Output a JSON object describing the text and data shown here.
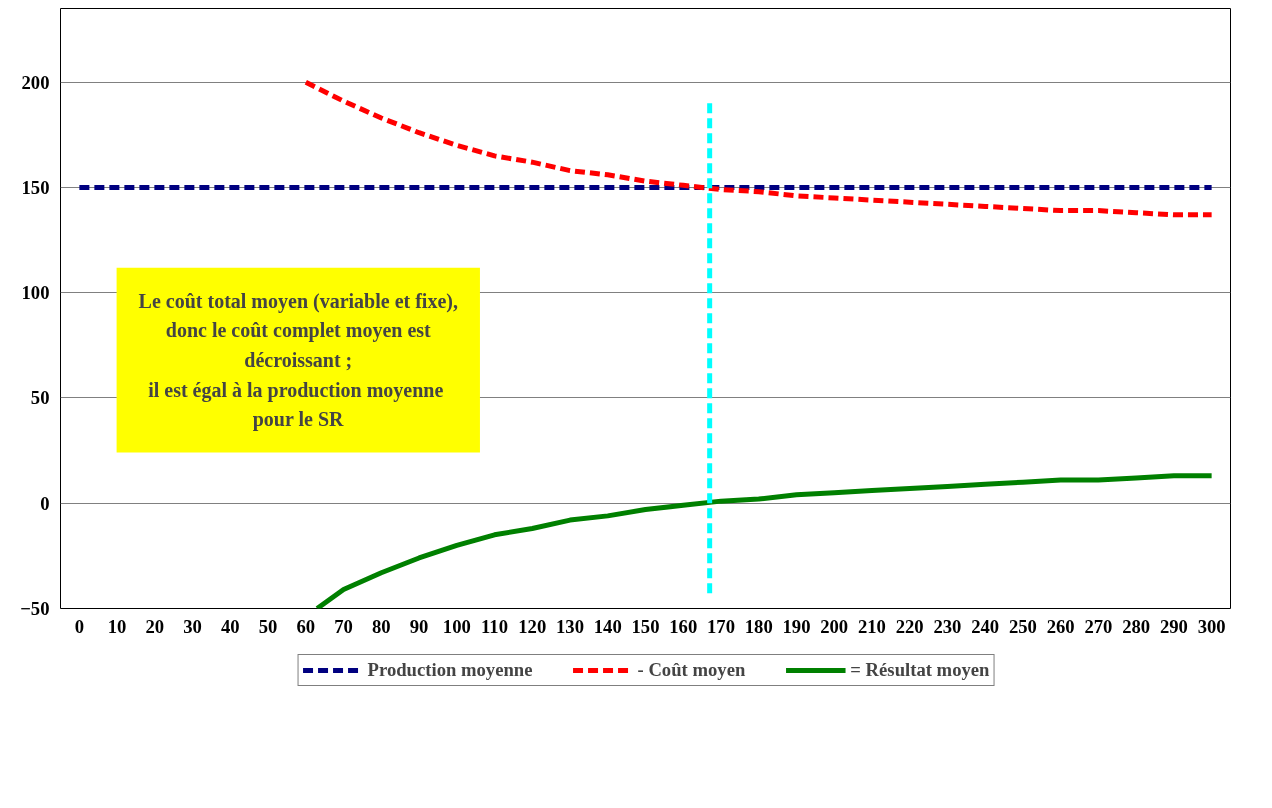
{
  "chart_data": {
    "type": "line",
    "x": [
      0,
      10,
      20,
      30,
      40,
      50,
      60,
      70,
      80,
      90,
      100,
      110,
      120,
      130,
      140,
      150,
      160,
      170,
      180,
      190,
      200,
      210,
      220,
      230,
      240,
      250,
      260,
      270,
      280,
      290,
      300
    ],
    "xlim": [
      -5,
      305
    ],
    "xticks": [
      0,
      10,
      20,
      30,
      40,
      50,
      60,
      70,
      80,
      90,
      100,
      110,
      120,
      130,
      140,
      150,
      160,
      170,
      180,
      190,
      200,
      210,
      220,
      230,
      240,
      250,
      260,
      270,
      280,
      290,
      300
    ],
    "ylim": [
      -50,
      235
    ],
    "yticks": [
      -50,
      0,
      50,
      100,
      150,
      200
    ],
    "grid": "y",
    "legend": "bottom",
    "series": [
      {
        "name": "Production moyenne",
        "color": "#000080",
        "line_style": "dashed",
        "values": [
          150,
          150,
          150,
          150,
          150,
          150,
          150,
          150,
          150,
          150,
          150,
          150,
          150,
          150,
          150,
          150,
          150,
          150,
          150,
          150,
          150,
          150,
          150,
          150,
          150,
          150,
          150,
          150,
          150,
          150,
          150
        ]
      },
      {
        "name": "- Coût moyen",
        "color": "#ff0000",
        "line_style": "dashed",
        "values": [
          null,
          null,
          null,
          null,
          null,
          null,
          200,
          191,
          183,
          176,
          170,
          165,
          162,
          158,
          156,
          153,
          151,
          149,
          148,
          146,
          145,
          144,
          143,
          142,
          141,
          140,
          139,
          139,
          138,
          137,
          137
        ]
      },
      {
        "name": "= Résultat moyen",
        "color": "#008000",
        "line_style": "solid",
        "x": [
          63,
          70,
          80,
          90,
          100,
          110,
          120,
          130,
          140,
          150,
          160,
          170,
          180,
          190,
          200,
          210,
          220,
          230,
          240,
          250,
          260,
          270,
          280,
          290,
          300
        ],
        "values": [
          -50,
          -41,
          -33,
          -26,
          -20,
          -15,
          -12,
          -8,
          -6,
          -3,
          -1,
          1,
          2,
          4,
          5,
          6,
          7,
          8,
          9,
          10,
          11,
          11,
          12,
          13,
          13
        ]
      },
      {
        "color": "#00ffff",
        "line_style": "dashed",
        "x": [
          167,
          167
        ],
        "values": [
          190,
          -45
        ]
      }
    ],
    "annotations": [
      "Le coût total moyen (variable et fixe),\ndonc le coût complet moyen est\ndécroissant ;\n il est égal à la production moyenne\npour le SR"
    ]
  }
}
